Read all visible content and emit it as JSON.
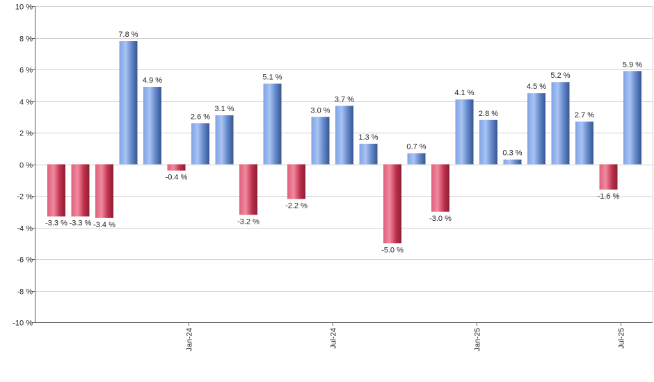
{
  "chart_data": {
    "type": "bar",
    "title": "",
    "xlabel": "",
    "ylabel": "",
    "ylim": [
      -10,
      10
    ],
    "y_ticks": [
      {
        "value": 10,
        "label": "10 %"
      },
      {
        "value": 8,
        "label": "8 %"
      },
      {
        "value": 6,
        "label": "6 %"
      },
      {
        "value": 4,
        "label": "4 %"
      },
      {
        "value": 2,
        "label": "2 %"
      },
      {
        "value": 0,
        "label": "0 %"
      },
      {
        "value": -2,
        "label": "-2 %"
      },
      {
        "value": -4,
        "label": "-4 %"
      },
      {
        "value": -6,
        "label": "-6 %"
      },
      {
        "value": -8,
        "label": "-8 %"
      },
      {
        "value": -10,
        "label": "-10 %"
      }
    ],
    "x_ticks": [
      {
        "category_index": 5.5,
        "label": "Jan-24"
      },
      {
        "category_index": 11.5,
        "label": "Jul-24"
      },
      {
        "category_index": 17.5,
        "label": "Jan-25"
      },
      {
        "category_index": 23.5,
        "label": "Jul-25"
      }
    ],
    "grid": true,
    "values": [
      -3.3,
      -3.3,
      -3.4,
      7.8,
      4.9,
      -0.4,
      2.6,
      3.1,
      -3.2,
      5.1,
      -2.2,
      3.0,
      3.7,
      1.3,
      -5.0,
      0.7,
      -3.0,
      4.1,
      2.8,
      0.3,
      4.5,
      5.2,
      2.7,
      -1.6,
      5.9
    ],
    "labels": [
      "-3.3 %",
      "-3.3 %",
      "-3.4 %",
      "7.8 %",
      "4.9 %",
      "-0.4 %",
      "2.6 %",
      "3.1 %",
      "-3.2 %",
      "5.1 %",
      "-2.2 %",
      "3.0 %",
      "3.7 %",
      "1.3 %",
      "-5.0 %",
      "0.7 %",
      "-3.0 %",
      "4.1 %",
      "2.8 %",
      "0.3 %",
      "4.5 %",
      "5.2 %",
      "2.7 %",
      "-1.6 %",
      "5.9 %"
    ],
    "colors": {
      "positive": "#6f96dc",
      "negative": "#c8334f"
    }
  }
}
